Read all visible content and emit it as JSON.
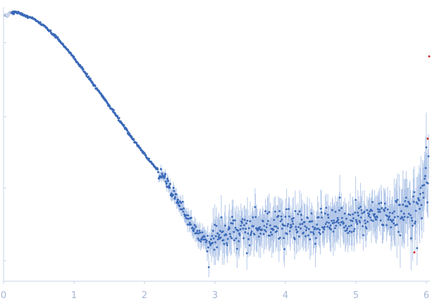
{
  "chart_data": {
    "type": "scatter",
    "title": "",
    "xlabel": "",
    "ylabel": "",
    "xlim": [
      0,
      6.05
    ],
    "ylim": [
      0,
      1
    ],
    "grid": false,
    "xticks": [
      0,
      1,
      2,
      3,
      4,
      5,
      6
    ],
    "xtick_labels": [
      "0",
      "1",
      "2",
      "3",
      "4",
      "5",
      "6"
    ],
    "yticks": [
      0.075,
      0.34,
      0.6,
      0.87
    ],
    "series": [
      {
        "name": "",
        "color": "#3b69b8",
        "points": [
          [
            0.05,
            0.968
          ],
          [
            0.1,
            0.981
          ],
          [
            0.2,
            0.98
          ],
          [
            0.3,
            0.97
          ],
          [
            0.4,
            0.96
          ],
          [
            0.5,
            0.944
          ],
          [
            0.6,
            0.925
          ],
          [
            0.7,
            0.902
          ],
          [
            0.8,
            0.875
          ],
          [
            0.9,
            0.845
          ],
          [
            1.0,
            0.815
          ],
          [
            1.1,
            0.78
          ],
          [
            1.2,
            0.746
          ],
          [
            1.3,
            0.71
          ],
          [
            1.4,
            0.676
          ],
          [
            1.5,
            0.64
          ],
          [
            1.6,
            0.604
          ],
          [
            1.7,
            0.567
          ],
          [
            1.8,
            0.532
          ],
          [
            1.9,
            0.497
          ],
          [
            2.0,
            0.464
          ],
          [
            2.1,
            0.432
          ],
          [
            2.2,
            0.401
          ],
          [
            2.3,
            0.372
          ],
          [
            2.4,
            0.325
          ],
          [
            2.5,
            0.28
          ],
          [
            2.6,
            0.228
          ],
          [
            2.7,
            0.194
          ],
          [
            2.8,
            0.164
          ],
          [
            2.9,
            0.142
          ],
          [
            3.0,
            0.17
          ],
          [
            3.1,
            0.17
          ],
          [
            3.2,
            0.178
          ],
          [
            3.3,
            0.182
          ],
          [
            3.4,
            0.188
          ],
          [
            3.5,
            0.186
          ],
          [
            3.6,
            0.182
          ],
          [
            3.7,
            0.196
          ],
          [
            3.8,
            0.198
          ],
          [
            3.9,
            0.206
          ],
          [
            4.0,
            0.206
          ],
          [
            4.1,
            0.198
          ],
          [
            4.2,
            0.204
          ],
          [
            4.3,
            0.209
          ],
          [
            4.4,
            0.204
          ],
          [
            4.5,
            0.206
          ],
          [
            4.6,
            0.212
          ],
          [
            4.7,
            0.208
          ],
          [
            4.8,
            0.214
          ],
          [
            4.9,
            0.216
          ],
          [
            5.0,
            0.222
          ],
          [
            5.1,
            0.226
          ],
          [
            5.2,
            0.234
          ],
          [
            5.3,
            0.24
          ],
          [
            5.4,
            0.242
          ],
          [
            5.5,
            0.244
          ],
          [
            5.6,
            0.248
          ],
          [
            5.7,
            0.254
          ],
          [
            5.8,
            0.262
          ],
          [
            5.9,
            0.285
          ],
          [
            6.0,
            0.362
          ]
        ]
      }
    ],
    "highlight_color": "#d12a2a",
    "error_bar_color": "#a9c0e6",
    "axis_color": "#c8d3e6",
    "tick_label_color": "#a7b7d3"
  }
}
